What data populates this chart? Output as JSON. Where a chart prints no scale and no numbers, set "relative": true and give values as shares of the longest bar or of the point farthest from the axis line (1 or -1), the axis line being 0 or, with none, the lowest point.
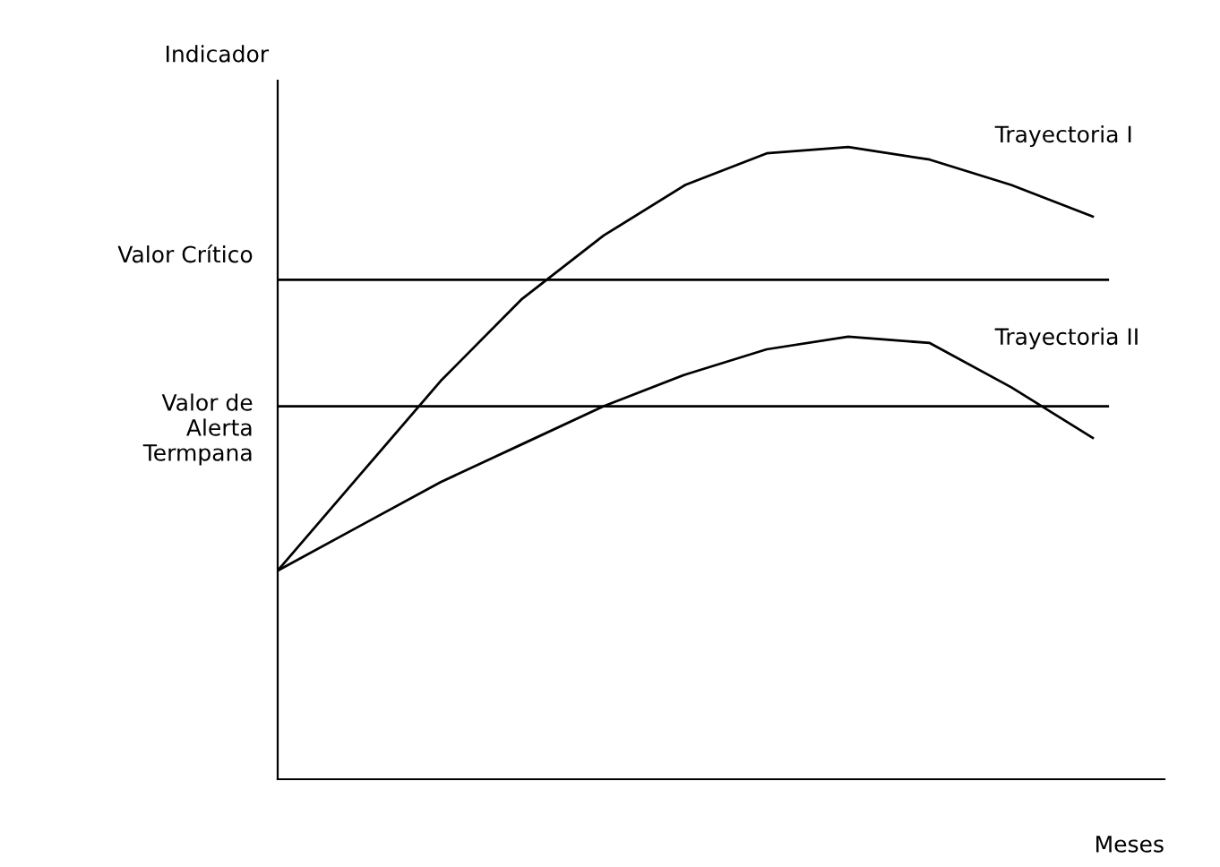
{
  "chart_data": {
    "type": "line",
    "relative": true,
    "xlabel": "Meses",
    "ylabel": "Indicador",
    "categories": [
      null,
      null,
      null,
      null,
      null,
      null,
      null,
      null,
      null,
      null,
      null
    ],
    "series": [
      {
        "name": "Trayectoria I",
        "color": "#000000",
        "values": [
          0.33,
          0.48,
          0.63,
          0.76,
          0.86,
          0.94,
          0.99,
          1.0,
          0.98,
          0.94,
          0.89
        ]
      },
      {
        "name": "Trayectoria II",
        "color": "#000000",
        "values": [
          0.33,
          0.4,
          0.47,
          0.53,
          0.59,
          0.64,
          0.68,
          0.7,
          0.69,
          0.62,
          0.54
        ]
      }
    ],
    "ref_lines": [
      {
        "axis": "y",
        "value": 0.79,
        "label": "Valor Crítico",
        "color": "#000000"
      },
      {
        "axis": "y",
        "value": 0.59,
        "label": "Valor de\nAlerta\nTermpana",
        "color": "#000000"
      }
    ],
    "legend": false,
    "marker": "none",
    "line_style": "solid"
  }
}
